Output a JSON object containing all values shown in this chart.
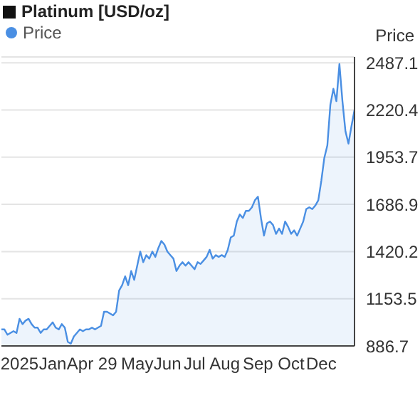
{
  "chart_data": {
    "type": "area",
    "title": "Platinum [USD/oz]",
    "ylabel": "Price",
    "categories": [
      null,
      null,
      null,
      null,
      null,
      null,
      "2025",
      null,
      null,
      null,
      null,
      null,
      null,
      null,
      null,
      null,
      null,
      "Jan",
      null,
      null,
      null,
      null,
      null,
      null,
      null,
      null,
      null,
      null,
      null,
      null,
      "Apr 29",
      null,
      null,
      null,
      null,
      null,
      null,
      null,
      null,
      null,
      null,
      null,
      null,
      null,
      null,
      "May",
      null,
      null,
      null,
      null,
      null,
      null,
      null,
      null,
      null,
      "Jun",
      null,
      null,
      null,
      null,
      null,
      null,
      null,
      null,
      "Jul",
      null,
      null,
      null,
      null,
      null,
      null,
      null,
      null,
      null,
      "Aug",
      null,
      null,
      null,
      null,
      null,
      null,
      null,
      null,
      null,
      null,
      "Sep",
      null,
      null,
      null,
      null,
      null,
      null,
      null,
      null,
      null,
      null,
      "Oct",
      null,
      null,
      null,
      null,
      null,
      null,
      null,
      null,
      null,
      "Dec",
      null,
      null,
      null,
      null,
      null,
      null,
      null,
      null,
      null,
      null,
      null
    ],
    "series": [
      {
        "name": "Price",
        "color": "#4a8fe3",
        "values": [
          980,
          980,
          950,
          960,
          970,
          960,
          1040,
          1010,
          1030,
          1040,
          1010,
          990,
          990,
          960,
          980,
          980,
          1000,
          1020,
          990,
          980,
          1010,
          990,
          910,
          900,
          940,
          960,
          980,
          970,
          980,
          980,
          990,
          980,
          990,
          1000,
          1080,
          1080,
          1070,
          1060,
          1080,
          1200,
          1230,
          1280,
          1230,
          1310,
          1260,
          1340,
          1420,
          1360,
          1400,
          1380,
          1420,
          1390,
          1440,
          1480,
          1460,
          1420,
          1400,
          1380,
          1310,
          1340,
          1360,
          1340,
          1360,
          1340,
          1320,
          1360,
          1350,
          1370,
          1390,
          1430,
          1380,
          1400,
          1390,
          1400,
          1390,
          1430,
          1500,
          1510,
          1590,
          1630,
          1610,
          1650,
          1650,
          1670,
          1710,
          1730,
          1610,
          1510,
          1580,
          1590,
          1570,
          1520,
          1550,
          1520,
          1590,
          1560,
          1520,
          1540,
          1510,
          1550,
          1590,
          1660,
          1670,
          1660,
          1680,
          1710,
          1820,
          1950,
          2020,
          2250,
          2340,
          2270,
          2480,
          2270,
          2100,
          2030,
          2130,
          2220
        ]
      }
    ],
    "ylim": [
      886.7,
      2520
    ],
    "yticks": [
      886.7,
      1153.5,
      1420.2,
      1686.9,
      1953.7,
      2220.4,
      2487.1
    ],
    "grid": "y",
    "legend": "top left",
    "marker": "none",
    "line_style": "solid"
  }
}
